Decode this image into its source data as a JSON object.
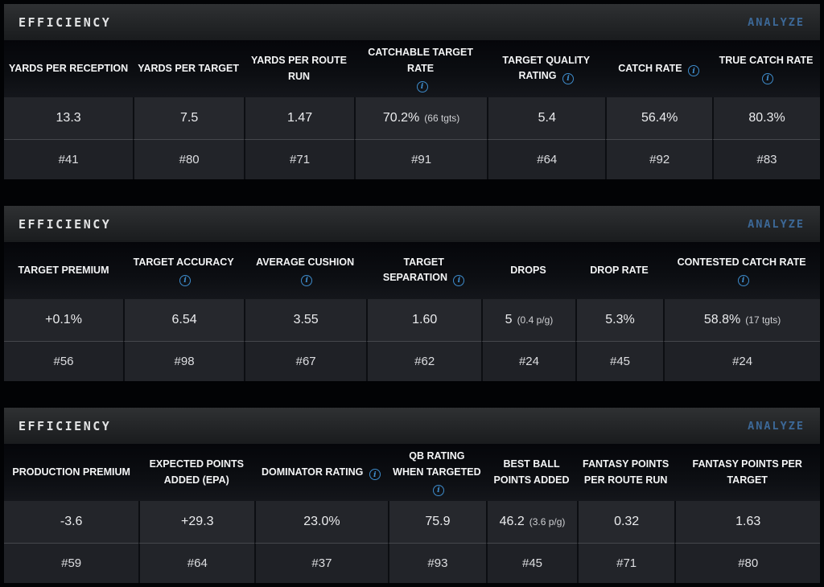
{
  "colors": {
    "accent_blue": "#3c6897",
    "info_icon_blue": "#3e8ccc",
    "panel_bar": "#232527",
    "cell_bg": "#23252a",
    "page_bg": "#020305"
  },
  "icons": {
    "info": "letter i in blue outlined circle"
  },
  "sections": [
    {
      "title": "EFFICIENCY",
      "action_label": "ANALYZE",
      "columns": [
        {
          "label": "YARDS PER RECEPTION",
          "info": false,
          "value": "13.3",
          "note": "",
          "rank": "#41"
        },
        {
          "label": "YARDS PER TARGET",
          "info": false,
          "value": "7.5",
          "note": "",
          "rank": "#80"
        },
        {
          "label": "YARDS PER ROUTE RUN",
          "info": false,
          "value": "1.47",
          "note": "",
          "rank": "#71"
        },
        {
          "label": "CATCHABLE TARGET RATE",
          "info": true,
          "value": "70.2%",
          "note": "(66 tgts)",
          "rank": "#91"
        },
        {
          "label": "TARGET QUALITY RATING",
          "info": true,
          "value": "5.4",
          "note": "",
          "rank": "#64"
        },
        {
          "label": "CATCH RATE",
          "info": true,
          "value": "56.4%",
          "note": "",
          "rank": "#92"
        },
        {
          "label": "TRUE CATCH RATE",
          "info": true,
          "value": "80.3%",
          "note": "",
          "rank": "#83"
        }
      ]
    },
    {
      "title": "EFFICIENCY",
      "action_label": "ANALYZE",
      "columns": [
        {
          "label": "TARGET PREMIUM",
          "info": false,
          "value": "+0.1%",
          "note": "",
          "rank": "#56"
        },
        {
          "label": "TARGET ACCURACY",
          "info": true,
          "value": "6.54",
          "note": "",
          "rank": "#98"
        },
        {
          "label": "AVERAGE CUSHION",
          "info": true,
          "value": "3.55",
          "note": "",
          "rank": "#67"
        },
        {
          "label": "TARGET SEPARATION",
          "info": true,
          "value": "1.60",
          "note": "",
          "rank": "#62"
        },
        {
          "label": "DROPS",
          "info": false,
          "value": "5",
          "note": "(0.4 p/g)",
          "rank": "#24"
        },
        {
          "label": "DROP RATE",
          "info": false,
          "value": "5.3%",
          "note": "",
          "rank": "#45"
        },
        {
          "label": "CONTESTED CATCH RATE",
          "info": true,
          "value": "58.8%",
          "note": "(17 tgts)",
          "rank": "#24"
        }
      ]
    },
    {
      "title": "EFFICIENCY",
      "action_label": "ANALYZE",
      "columns": [
        {
          "label": "PRODUCTION PREMIUM",
          "info": false,
          "value": "-3.6",
          "note": "",
          "rank": "#59"
        },
        {
          "label": "EXPECTED POINTS ADDED (EPA)",
          "info": false,
          "value": "+29.3",
          "note": "",
          "rank": "#64"
        },
        {
          "label": "DOMINATOR RATING",
          "info": true,
          "value": "23.0%",
          "note": "",
          "rank": "#37"
        },
        {
          "label": "QB RATING WHEN TARGETED",
          "info": true,
          "value": "75.9",
          "note": "",
          "rank": "#93"
        },
        {
          "label": "BEST BALL POINTS ADDED",
          "info": false,
          "value": "46.2",
          "note": "(3.6 p/g)",
          "rank": "#45"
        },
        {
          "label": "FANTASY POINTS PER ROUTE RUN",
          "info": false,
          "value": "0.32",
          "note": "",
          "rank": "#71"
        },
        {
          "label": "FANTASY POINTS PER TARGET",
          "info": false,
          "value": "1.63",
          "note": "",
          "rank": "#80"
        }
      ]
    }
  ]
}
